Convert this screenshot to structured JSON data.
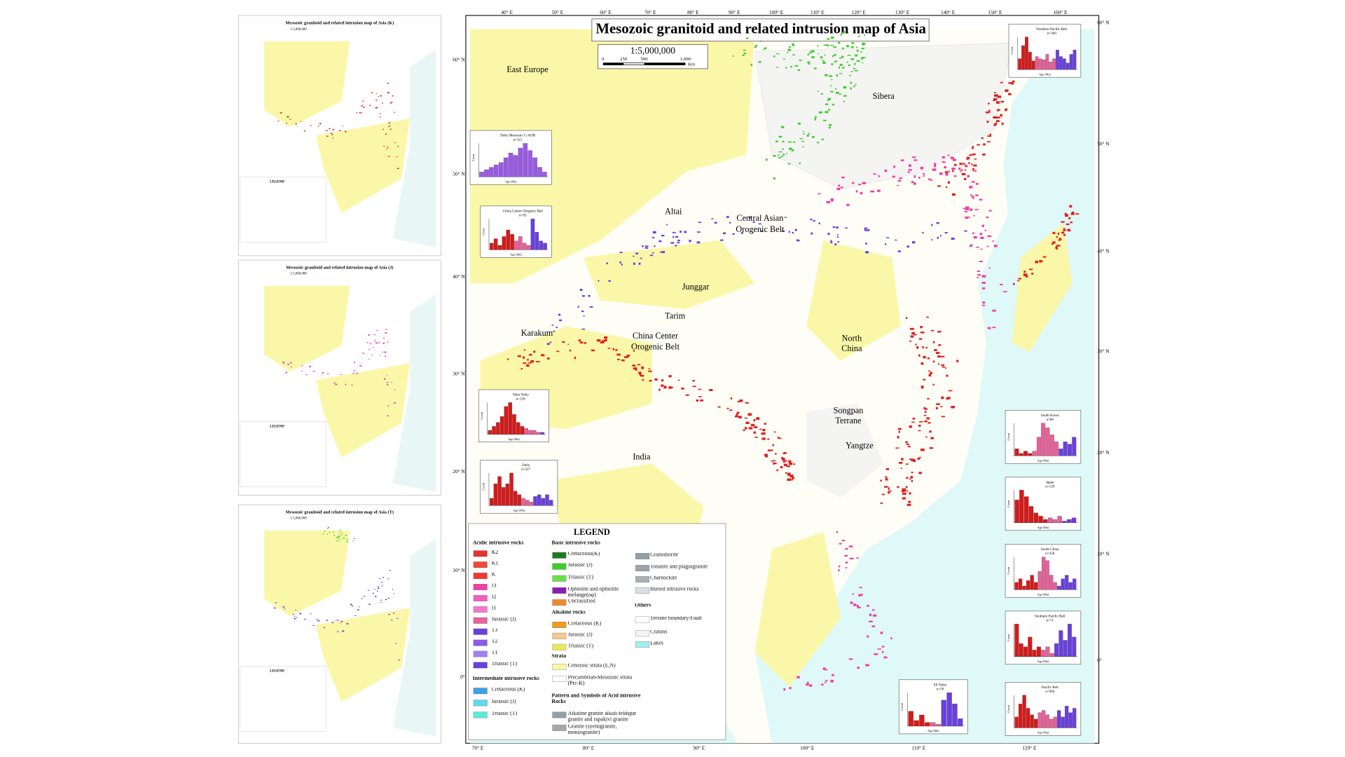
{
  "thumbnails": [
    {
      "title": "Mesozoic granitoid and related intrusion map of Asia (K)",
      "scale": "1:5,000,000",
      "legend": "LEGEND"
    },
    {
      "title": "Mesozoic granitoid and related intrusion map of Asia (J)",
      "scale": "1:5,000,000",
      "legend": "LEGEND"
    },
    {
      "title": "Mesozoic granitoid and related intrusion map of Asia (T)",
      "scale": "1:5,000,000",
      "legend": "LEGEND"
    }
  ],
  "map": {
    "title": "Mesozoic granitoid and related intrusion map of Asia",
    "scale": {
      "ratio": "1:5,000,000",
      "ticks": [
        "0",
        "250",
        "500",
        "1,000"
      ],
      "unit": "Km"
    },
    "lon_top": [
      "40° E",
      "50° E",
      "60° E",
      "70° E",
      "80° E",
      "90° E",
      "100° E",
      "110° E",
      "120° E",
      "130° E",
      "140° E",
      "150° E",
      "160° E"
    ],
    "lon_bottom": [
      "70° E",
      "80° E",
      "90° E",
      "100° E",
      "110° E",
      "120° E"
    ],
    "lat_right": [
      "60° N",
      "50° N",
      "40° N",
      "30° N",
      "20° N",
      "10° N",
      "0°"
    ],
    "lat_left": [
      "60° N",
      "50° N",
      "40° N",
      "30° N",
      "20° N",
      "10° N",
      "0°"
    ],
    "regions": [
      "East Europe",
      "Sibera",
      "Altai",
      "Central Asian",
      "Orogenic Belt",
      "Junggar",
      "Tarim",
      "Karakum",
      "China Center",
      "Orogenic Belt",
      "North",
      "China",
      "Songpan",
      "Terrane",
      "Yangtze",
      "India"
    ]
  },
  "histogram_axis": {
    "x": "Age (Ma)",
    "y": "Count"
  },
  "histograms": [
    {
      "title": "Tethy Mesozoic C-AOB",
      "n": "n=115",
      "groups": [
        {
          "color": "#9b59e6",
          "values": [
            2,
            3,
            4,
            5,
            6,
            8,
            10,
            9,
            12,
            14,
            11,
            8,
            4,
            2
          ]
        }
      ]
    },
    {
      "title": "China Center Orogenic Belt",
      "n": "n=93",
      "groups": [
        {
          "color": "#d81818",
          "values": [
            3,
            5,
            2,
            6,
            9,
            7
          ]
        },
        {
          "color": "#e8609a",
          "values": [
            4,
            6,
            3,
            2
          ]
        },
        {
          "color": "#6a3fe0",
          "values": [
            14,
            8,
            4,
            3
          ]
        }
      ]
    },
    {
      "title": "Tibet Tethy",
      "n": "n=126",
      "groups": [
        {
          "color": "#d81818",
          "values": [
            2,
            4,
            6,
            9,
            14,
            16,
            10,
            6,
            4
          ]
        },
        {
          "color": "#e8609a",
          "values": [
            3,
            2,
            2,
            1
          ]
        },
        {
          "color": "#6a3fe0",
          "values": [
            1
          ]
        }
      ]
    },
    {
      "title": "Tethy",
      "n": "n=227",
      "groups": [
        {
          "color": "#d81818",
          "values": [
            4,
            12,
            16,
            10,
            12,
            18,
            8,
            6
          ]
        },
        {
          "color": "#e8609a",
          "values": [
            4,
            3,
            2
          ]
        },
        {
          "color": "#6a3fe0",
          "values": [
            5,
            6,
            4,
            6,
            3
          ]
        }
      ]
    },
    {
      "title": "Northern Pacific Belt",
      "n": "n=360",
      "groups": [
        {
          "color": "#d81818",
          "values": [
            10,
            22,
            30,
            16,
            8
          ]
        },
        {
          "color": "#e8609a",
          "values": [
            12,
            10,
            9,
            14,
            7,
            10
          ]
        },
        {
          "color": "#6a3fe0",
          "values": [
            18,
            12,
            10,
            6,
            14,
            18
          ]
        }
      ]
    },
    {
      "title": "South Korea",
      "n": "n=86",
      "groups": [
        {
          "color": "#d81818",
          "values": [
            3,
            1,
            2,
            1
          ]
        },
        {
          "color": "#e8609a",
          "values": [
            2,
            8,
            14,
            12,
            9,
            6
          ]
        },
        {
          "color": "#6a3fe0",
          "values": [
            3,
            6,
            5,
            8
          ]
        }
      ]
    },
    {
      "title": "Japan",
      "n": "n=129",
      "groups": [
        {
          "color": "#d81818",
          "values": [
            14,
            20,
            16,
            10,
            6,
            4,
            2
          ]
        },
        {
          "color": "#e8609a",
          "values": [
            3,
            2,
            4
          ]
        },
        {
          "color": "#6a3fe0",
          "values": [
            1,
            2,
            3
          ]
        }
      ]
    },
    {
      "title": "South China",
      "n": "n=258",
      "groups": [
        {
          "color": "#d81818",
          "values": [
            4,
            6,
            2,
            5,
            8,
            4
          ]
        },
        {
          "color": "#e8609a",
          "values": [
            10,
            18,
            16,
            8,
            4
          ]
        },
        {
          "color": "#6a3fe0",
          "values": [
            2,
            6,
            8,
            4,
            6
          ]
        }
      ]
    },
    {
      "title": "Southern Pacific Belt",
      "n": "n=71",
      "groups": [
        {
          "color": "#d81818",
          "values": [
            10,
            4,
            3,
            6,
            2,
            3
          ]
        },
        {
          "color": "#e8609a",
          "values": [
            2,
            3,
            1
          ]
        },
        {
          "color": "#6a3fe0",
          "values": [
            4,
            8,
            5,
            10,
            6
          ]
        }
      ]
    },
    {
      "title": "Pacific Belt",
      "n": "n=904",
      "groups": [
        {
          "color": "#d81818",
          "values": [
            10,
            22,
            30,
            18,
            12,
            8
          ]
        },
        {
          "color": "#e8609a",
          "values": [
            14,
            16,
            12,
            8,
            10
          ]
        },
        {
          "color": "#6a3fe0",
          "values": [
            16,
            10,
            20,
            14,
            18
          ]
        }
      ]
    },
    {
      "title": "SE Tethy",
      "n": "n=59",
      "groups": [
        {
          "color": "#d81818",
          "values": [
            8,
            3,
            6,
            2
          ]
        },
        {
          "color": "#e8609a",
          "values": [
            2,
            1
          ]
        },
        {
          "color": "#6a3fe0",
          "values": [
            14,
            18,
            12,
            4
          ]
        }
      ]
    }
  ],
  "legend": {
    "title": "LEGEND",
    "sections": [
      {
        "heading": "Acidic intrusive rocks",
        "items": [
          {
            "label": "K2",
            "color": "#e8312a"
          },
          {
            "label": "K1",
            "color": "#f04a3a"
          },
          {
            "label": "K",
            "color": "#f2392c"
          },
          {
            "label": "J3",
            "color": "#ee3fa4"
          },
          {
            "label": "J2",
            "color": "#f25fc0"
          },
          {
            "label": "J1",
            "color": "#f07ad0"
          },
          {
            "label": "Jurassic (J)",
            "color": "#e9609a"
          },
          {
            "label": "T3",
            "color": "#6a3fe0"
          },
          {
            "label": "T2",
            "color": "#8a5ae8"
          },
          {
            "label": "T1",
            "color": "#a57ef0"
          },
          {
            "label": "Triassic (T)",
            "color": "#6b3fd8"
          }
        ]
      },
      {
        "heading": "Intermediate intrusive rocks",
        "items": [
          {
            "label": "Cretaceous (K)",
            "color": "#3fa0e8"
          },
          {
            "label": "Jurassic (J)",
            "color": "#5fd8f0"
          },
          {
            "label": "Triassic (T)",
            "color": "#60e8d8"
          }
        ]
      },
      {
        "heading": "Basic intrusive rocks",
        "items": [
          {
            "label": "Cretaceous(K)",
            "color": "#1e7a1e"
          },
          {
            "label": "Jurassic (J)",
            "color": "#3ccc2c"
          },
          {
            "label": "Triassic (T)",
            "color": "#6ee04a"
          },
          {
            "label": "Ophiolite and ophiolite melange(oφ)",
            "color": "#8a1fb0"
          },
          {
            "label": "Unclassified",
            "color": "#f08a30"
          }
        ]
      },
      {
        "heading": "Alkaline rocks",
        "items": [
          {
            "label": "Cretaceous (K)",
            "color": "#f09a20"
          },
          {
            "label": "Jurassic (J)",
            "color": "#f4c890"
          },
          {
            "label": "Triassic (T)",
            "color": "#e8e860"
          }
        ]
      },
      {
        "heading": "Strata",
        "items": [
          {
            "label": "Cenozoic strata (E,N)",
            "color": "#fbf7a8"
          },
          {
            "label": "Precambrian-Mesozoic strata (Prc-K)",
            "color": "#ffffff"
          }
        ]
      },
      {
        "heading": "Pattern and Symbols of Acid intrusive Rocks",
        "items": [
          {
            "label": "Alkaline granite alkali-feldspar granite and rapakivi granite",
            "color": "#8fa0a8"
          },
          {
            "label": "Granite (syenogranite, monzogranite)",
            "color": "#a0aab0"
          }
        ]
      },
      {
        "items": [
          {
            "label": "Granodiorite",
            "color": "#8fa0a8"
          },
          {
            "label": "Tonalite and plagiogranite",
            "color": "#9aa4aa"
          },
          {
            "label": "Charnockite",
            "color": "#aab0b4"
          },
          {
            "label": "Buried intrusive rocks",
            "color": "#d8e0e4"
          }
        ]
      },
      {
        "heading": "Others",
        "items": [
          {
            "label": "Terrane boundary/Fault",
            "color": "#ffffff"
          },
          {
            "label": "Cratons",
            "color": "#f4f4f4"
          },
          {
            "label": "Lakes",
            "color": "#a0f0f0"
          }
        ]
      }
    ]
  }
}
